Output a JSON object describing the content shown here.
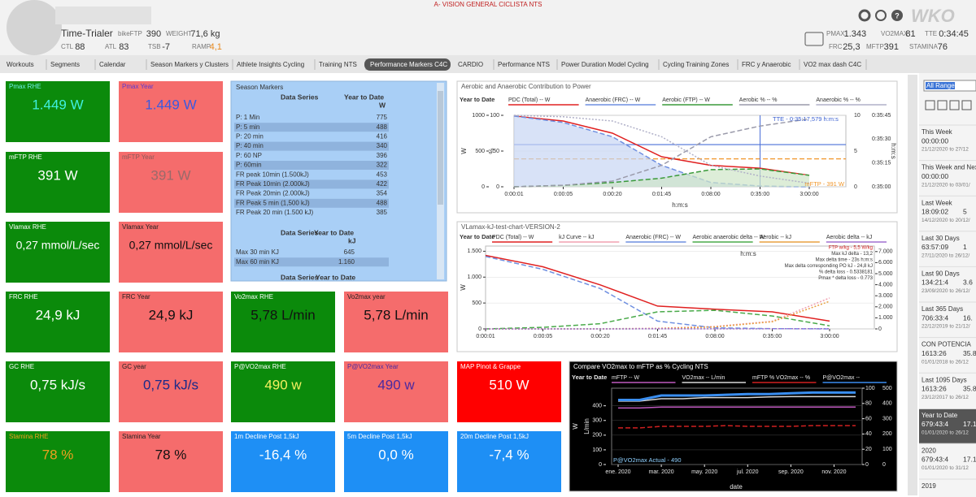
{
  "header": {
    "app_title": "A- VISION GENERAL CICLISTA NTS",
    "athlete": "Time-Trialer",
    "logo": "WKO",
    "left_metrics": [
      {
        "label": "bikeFTP",
        "value": "390"
      },
      {
        "label": "WEIGHT",
        "value": "71,6 kg"
      },
      {
        "label": "CTL",
        "value": "88"
      },
      {
        "label": "ATL",
        "value": "83"
      },
      {
        "label": "TSB",
        "value": "-7"
      },
      {
        "label": "RAMP",
        "value": "4,1",
        "color": "#e8891e"
      }
    ],
    "right_metrics": [
      {
        "label": "PMAX",
        "value": "1.343"
      },
      {
        "label": "VO2MAX",
        "value": "81"
      },
      {
        "label": "TTE",
        "value": "0:34:45"
      },
      {
        "label": "FRC",
        "value": "25,3"
      },
      {
        "label": "MFTP",
        "value": "391"
      },
      {
        "label": "STAMINA",
        "value": "76"
      }
    ]
  },
  "tabs": [
    "Workouts",
    "Segments",
    "Calendar",
    "Season Markers y Clusters",
    "Athlete Insights Cycling",
    "Training NTS",
    "Performance Markers C4C",
    "CARDIO",
    "Performance NTS",
    "Power Duration Model Cycling",
    "Cycling Training Zones",
    "FRC y Anaerobic",
    "VO2 max dash C4C"
  ],
  "active_tab": 6,
  "tiles": [
    {
      "title": "Pmax RHE",
      "value": "1.449 W",
      "bg": "#0b8a0b",
      "color": "#40f0e0",
      "title_color": "#70f0e8"
    },
    {
      "title": "Pmax Year",
      "value": "1.449 W",
      "bg": "#f56c6c",
      "color": "#3a5ae0",
      "title_color": "#5a3ad0"
    },
    {
      "title": "mFTP RHE",
      "value": "391 W",
      "bg": "#0b8a0b",
      "color": "#ffffff",
      "title_color": "#ffffff"
    },
    {
      "title": "mFTP Year",
      "value": "391 W",
      "bg": "#f56c6c",
      "color": "#9a6a6a",
      "title_color": "#8a5a5a"
    },
    {
      "title": "Vlamax RHE",
      "value": "0,27 mmol/L/sec",
      "bg": "#0b8a0b",
      "color": "#ffffff",
      "title_color": "#ffffff"
    },
    {
      "title": "Vlamax Year",
      "value": "0,27 mmol/L/sec",
      "bg": "#f56c6c",
      "color": "#111111",
      "title_color": "#222222"
    },
    {
      "title": "FRC RHE",
      "value": "24,9 kJ",
      "bg": "#0b8a0b",
      "color": "#ffffff",
      "title_color": "#ffffff"
    },
    {
      "title": "FRC Year",
      "value": "24,9 kJ",
      "bg": "#f56c6c",
      "color": "#111111",
      "title_color": "#222222"
    },
    {
      "title": "Vo2max RHE",
      "value": "5,78 L/min",
      "bg": "#0b8a0b",
      "color": "#111111",
      "title_color": "#ffffff"
    },
    {
      "title": "Vo2max year",
      "value": "5,78 L/min",
      "bg": "#f56c6c",
      "color": "#111111",
      "title_color": "#222222"
    },
    {
      "title": "GC RHE",
      "value": "0,75 kJ/s",
      "bg": "#0b8a0b",
      "color": "#ffffff",
      "title_color": "#ffffff"
    },
    {
      "title": "GC year",
      "value": "0,75 kJ/s",
      "bg": "#f56c6c",
      "color": "#1a2a8a",
      "title_color": "#222222"
    },
    {
      "title": "P@VO2max RHE",
      "value": "490 w",
      "bg": "#0b8a0b",
      "color": "#f4f060",
      "title_color": "#ffffff"
    },
    {
      "title": "P@VO2max Year",
      "value": "490 w",
      "bg": "#f56c6c",
      "color": "#4a2aa0",
      "title_color": "#4a2aa0"
    },
    {
      "title": "MAP Pinot & Grappe",
      "value": "510 W",
      "bg": "#ff0000",
      "color": "#ffffff",
      "title_color": "#ffffff"
    },
    {
      "title": "Stamina RHE",
      "value": "78 %",
      "bg": "#0b8a0b",
      "color": "#f0a020",
      "title_color": "#f0a020"
    },
    {
      "title": "Stamina Year",
      "value": "78 %",
      "bg": "#f56c6c",
      "color": "#111111",
      "title_color": "#222222"
    },
    {
      "title": "1m Decline Post 1,5kJ",
      "value": "-16,4 %",
      "bg": "#1e8ff5",
      "color": "#ffffff",
      "title_color": "#ffffff"
    },
    {
      "title": "5m Decline Post 1,5kJ",
      "value": "0,0 %",
      "bg": "#1e8ff5",
      "color": "#ffffff",
      "title_color": "#ffffff"
    },
    {
      "title": "20m Decline Post 1,5kJ",
      "value": "-7,4 %",
      "bg": "#1e8ff5",
      "color": "#ffffff",
      "title_color": "#ffffff"
    }
  ],
  "season_markers": {
    "title": "Season Markers",
    "tables": [
      {
        "header": [
          "Data Series",
          "Year to Date",
          "W"
        ],
        "rows": [
          [
            "P: 1 Min",
            775
          ],
          [
            "P: 5 min",
            488
          ],
          [
            "P: 20 min",
            416
          ],
          [
            "P: 40 min",
            340
          ],
          [
            "P: 60 NP",
            396
          ],
          [
            "P: 60min",
            322
          ],
          [
            "FR peak 10min (1.500kJ)",
            453
          ],
          [
            "FR Peak 10min (2.000kJ)",
            422
          ],
          [
            "FR Peak 20min (2.000kJ)",
            354
          ],
          [
            "FR Peak 5 min (1,500 kJ)",
            488
          ],
          [
            "FR Peak 20 min (1.500 kJ)",
            385
          ]
        ]
      },
      {
        "header": [
          "Data Series",
          "Year to Date",
          "kJ"
        ],
        "rows": [
          [
            "Max 30 min KJ",
            645
          ],
          [
            "Max 60 min KJ",
            "1.160"
          ]
        ]
      },
      {
        "header": [
          "Data Series",
          "Year to Date"
        ],
        "rows": []
      }
    ]
  },
  "chart_data": [
    {
      "type": "line",
      "title": "Aerobic and Anaerobic Contribution to Power",
      "legend_header": "Year to Date",
      "background": "#ffffff",
      "categories": [
        "0:00:01",
        "0:00:05",
        "0:00:20",
        "0:01:45",
        "0:08:00",
        "0:35:00",
        "3:00:00"
      ],
      "xlabel": "h:m:s",
      "ylabel": "W",
      "ylim": [
        0,
        1000
      ],
      "yticks": [
        0,
        500,
        1000
      ],
      "y2label": "%",
      "y2lim": [
        0,
        100
      ],
      "y2ticks": [
        0,
        50,
        100
      ],
      "extra_axes": [
        {
          "ticks": [
            0,
            5,
            10
          ]
        },
        {
          "label": "h:m:s",
          "ticks": [
            "0:35:00",
            "0:35:15",
            "0:35:30",
            "0:35:45"
          ]
        }
      ],
      "reference_lines": [
        {
          "value": 590,
          "color": "#4a6fd8"
        },
        {
          "value": 391,
          "color": "#f0962a",
          "dash": "dashed"
        }
      ],
      "series": [
        {
          "name": "PDC (Total)  -- W",
          "color": "#e02020",
          "values": [
            990,
            920,
            750,
            420,
            300,
            260,
            160
          ]
        },
        {
          "name": "Anaerobic (FRC)  -- W",
          "color": "#6f8fe0",
          "dash": "dashed",
          "fill": "#c8d6f4",
          "values": [
            990,
            900,
            700,
            300,
            60,
            10,
            0
          ]
        },
        {
          "name": "Aerobic (FTP)  -- W",
          "color": "#3a9a3a",
          "dash": "dashed",
          "fill": "#cfe6c8",
          "values": [
            0,
            20,
            60,
            120,
            240,
            250,
            160
          ]
        },
        {
          "name": "Aerobic %  -- %",
          "color": "#9a9aaa",
          "dash": "dashed",
          "axis": "y2",
          "values": [
            0,
            2,
            8,
            30,
            70,
            85,
            95
          ]
        },
        {
          "name": "Anaerobic %  -- %",
          "color": "#b0b0c8",
          "dash": "dotted",
          "axis": "y2",
          "values": [
            100,
            98,
            92,
            70,
            30,
            15,
            5
          ]
        }
      ],
      "annotations": [
        {
          "text": "TTE - 0:35:17,579 h:m:s",
          "color": "#3a5fd0"
        },
        {
          "text": "mFTP - 391 W",
          "color": "#f0962a"
        }
      ]
    },
    {
      "type": "line",
      "title": "VLamax-kJ-test-chart-VERSION-2",
      "legend_header": "Year to Date",
      "background": "#ffffff",
      "categories": [
        "0:00:01",
        "0:00:05",
        "0:00:20",
        "0:01:45",
        "0:08:00",
        "0:35:00",
        "3:00:00"
      ],
      "xlabel": "h:m:s",
      "ylabel": "W",
      "ylim": [
        0,
        1600
      ],
      "yticks": [
        0,
        500,
        {
          "value": 1000,
          "label": "1.000"
        },
        {
          "value": 1500,
          "label": "1.500"
        }
      ],
      "y2lim": [
        0,
        7500
      ],
      "y2ticks": [
        0,
        {
          "value": 1000,
          "label": "1.000"
        },
        {
          "value": 2000,
          "label": "2.000"
        },
        {
          "value": 3000,
          "label": "3.000"
        },
        {
          "value": 4000,
          "label": "4.000"
        },
        {
          "value": 5000,
          "label": "5.000"
        },
        {
          "value": 6000,
          "label": "6.000"
        },
        {
          "value": 7000,
          "label": "7.000"
        }
      ],
      "series": [
        {
          "name": "PDC (Total)  -- W",
          "color": "#e02020",
          "values": [
            1420,
            1200,
            850,
            440,
            380,
            330,
            150
          ]
        },
        {
          "name": "kJ Curve  -- kJ",
          "color": "#f0a0b0",
          "dash": "dotted",
          "axis": "y2",
          "values": [
            0,
            5,
            15,
            60,
            220,
            700,
            2800
          ]
        },
        {
          "name": "Anaerobic (FRC)  -- W",
          "color": "#6f8fe0",
          "dash": "dashed",
          "values": [
            1400,
            1150,
            780,
            150,
            20,
            5,
            0
          ]
        },
        {
          "name": "Aerobic anaerobic delta  -- W",
          "color": "#4aaa4a",
          "dash": "dashed",
          "values": [
            0,
            30,
            100,
            330,
            360,
            250,
            60
          ]
        },
        {
          "name": "Aerobic  -- kJ",
          "color": "#e8a040",
          "dash": "dotted",
          "axis": "y2",
          "values": [
            0,
            0,
            2,
            30,
            180,
            650,
            2500
          ]
        },
        {
          "name": "Aerobic delta  -- kJ",
          "color": "#a070d0",
          "dash": "dotted",
          "axis": "y2",
          "values": [
            0,
            0,
            0,
            5,
            10,
            15,
            20
          ]
        }
      ],
      "annotations": [
        {
          "text": "FTP w/kg - 5,5 W/kg",
          "color": "#d02020"
        },
        {
          "text": "Max kJ delta - 13,2",
          "color": "#333333"
        },
        {
          "text": "Max delta time - 23s h:m:s",
          "color": "#333333"
        },
        {
          "text": "Max delta corresponding PO kJ - 24,8 kJ",
          "color": "#333333"
        },
        {
          "text": "% delta loss - 0.5338181",
          "color": "#333333"
        },
        {
          "text": "Pmax * delta loss - 0.773",
          "color": "#333333"
        }
      ]
    },
    {
      "type": "line",
      "title": "Compare VO2max to mFTP as % Cycling NTS",
      "legend_header": "Year to Date",
      "background": "#000000",
      "categories": [
        "ene. 2020",
        null,
        "mar. 2020",
        null,
        "may. 2020",
        null,
        "jul. 2020",
        null,
        "sep. 2020",
        null,
        "nov. 2020",
        null
      ],
      "xlabel": "date",
      "ylabel": "W",
      "ylim": [
        0,
        520
      ],
      "yticks": [
        0,
        100,
        200,
        300,
        400
      ],
      "y2lim": [
        0,
        100
      ],
      "y2ticks": [
        0,
        20,
        40,
        60,
        80,
        100
      ],
      "y3label": "L/min",
      "y3lim": [
        0,
        6.5
      ],
      "extra_axes": [
        {
          "ticks": [
            0,
            100,
            200,
            300,
            400,
            500
          ]
        }
      ],
      "series": [
        {
          "name": "mFTP  -- W",
          "color": "#c05ac0",
          "values": [
            385,
            385,
            391,
            391,
            391,
            391,
            391,
            391,
            391,
            391,
            391,
            391
          ]
        },
        {
          "name": "VO2max  -- L/min",
          "color": "#d8d8d8",
          "axis": "y3",
          "values": [
            5.4,
            5.4,
            5.6,
            5.6,
            5.7,
            5.7,
            5.7,
            5.75,
            5.78,
            5.78,
            5.78,
            5.78
          ]
        },
        {
          "name": "mFTP % VO2max  -- %",
          "color": "#d02020",
          "dash": "dashed",
          "axis": "y2",
          "values": [
            48,
            48,
            50,
            50,
            50,
            51,
            50,
            50,
            50,
            51,
            51,
            51
          ]
        },
        {
          "name": "P@VO2max  --",
          "color": "#3a8ef0",
          "width": 3,
          "values": [
            440,
            440,
            470,
            470,
            470,
            475,
            480,
            480,
            485,
            490,
            490,
            490
          ]
        }
      ],
      "annotations": [
        {
          "text": "P@VO2max Actual - 490",
          "color": "#8fd0ff"
        }
      ]
    }
  ],
  "sidebar": {
    "range": "All Ranges",
    "items": [
      {
        "name": "This Week",
        "time": "00:00:00",
        "dates": "21/12/2020 to 27/12"
      },
      {
        "name": "This Week and Next",
        "time": "00:00:00",
        "dates": "21/12/2020 to 03/01/"
      },
      {
        "name": "Last Week",
        "time": "18:09:02",
        "extra": "5",
        "dates": "14/12/2020 to 20/12/"
      },
      {
        "name": "Last 30 Days",
        "time": "63:57:09",
        "extra": "1",
        "dates": "27/11/2020 to 26/12/"
      },
      {
        "name": "Last 90 Days",
        "time": "134:21:4",
        "extra": "3.6",
        "dates": "23/09/2020 to 26/12/"
      },
      {
        "name": "Last 365 Days",
        "time": "706:33:4",
        "extra": "16.",
        "dates": "22/12/2019 to 21/12/"
      },
      {
        "name": "CON POTENCIA",
        "time": "1613:26",
        "extra": "35.8",
        "dates": "01/01/2018 to 26/12"
      },
      {
        "name": "Last 1095 Days",
        "time": "1613:26",
        "extra": "35.8",
        "dates": "23/12/2017 to 26/12"
      },
      {
        "name": "Year to Date",
        "time": "679:43:4",
        "extra": "17.1",
        "dates": "01/01/2020 to 26/12"
      },
      {
        "name": "2020",
        "time": "679:43:4",
        "extra": "17.1",
        "dates": "01/01/2020 to 31/12"
      },
      {
        "name": "2019"
      }
    ],
    "selected": 8
  }
}
